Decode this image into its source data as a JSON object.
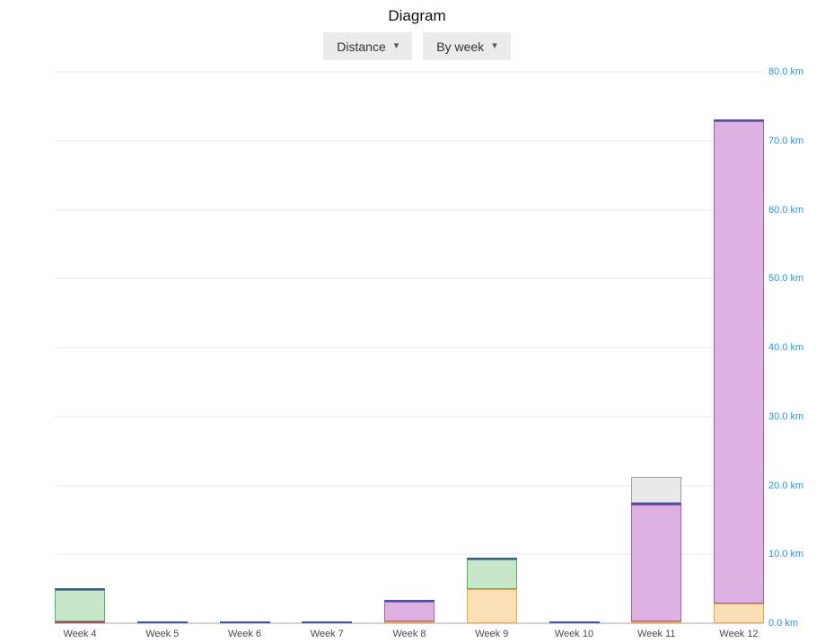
{
  "page": {
    "title": "Diagram"
  },
  "toolbar": {
    "metric_dropdown": {
      "label": "Distance",
      "caret_glyph": "▾"
    },
    "grouping_dropdown": {
      "label": "By week",
      "caret_glyph": "▾"
    }
  },
  "chart_data": {
    "type": "bar",
    "stacked": true,
    "title": "Diagram",
    "xlabel": "",
    "ylabel": "",
    "categories": [
      "Week 4",
      "Week 5",
      "Week 6",
      "Week 7",
      "Week 8",
      "Week 9",
      "Week 10",
      "Week 11",
      "Week 12"
    ],
    "series": [
      {
        "name": "red",
        "fill": "#ecb6c3",
        "border": "#b04a66",
        "values": [
          0.3,
          0,
          0,
          0,
          0,
          0,
          0,
          0,
          0
        ]
      },
      {
        "name": "orange",
        "fill": "#fbdfb6",
        "border": "#efa23f",
        "values": [
          0,
          0,
          0,
          0,
          0.2,
          4.9,
          0,
          0.3,
          2.9
        ]
      },
      {
        "name": "green",
        "fill": "#c8e6c9",
        "border": "#5aad5f",
        "values": [
          4.6,
          0,
          0,
          0,
          0,
          4.3,
          0,
          0,
          0
        ]
      },
      {
        "name": "purple",
        "fill": "#ddb2e2",
        "border": "#a65cb5",
        "values": [
          0,
          0,
          0,
          0,
          2.9,
          0,
          0,
          17.0,
          70.0
        ]
      },
      {
        "name": "blue",
        "fill": "#98a6d4",
        "border": "#3f51b5",
        "values": [
          0.3,
          0.3,
          0.3,
          0.3,
          0.3,
          0.3,
          0.3,
          0.3,
          0.2
        ]
      },
      {
        "name": "gray",
        "fill": "#e9e9e9",
        "border": "#9e9e9e",
        "values": [
          0,
          0,
          0,
          0,
          0,
          0,
          0,
          3.8,
          0
        ]
      }
    ],
    "totals_km": [
      5.2,
      0.3,
      0.3,
      0.3,
      3.4,
      9.5,
      0.3,
      21.4,
      73.1
    ],
    "y_axis": {
      "unit": "km",
      "min": 0,
      "max": 80,
      "tick_step": 10,
      "tick_labels": [
        "0.0 km",
        "10.0 km",
        "20.0 km",
        "30.0 km",
        "40.0 km",
        "50.0 km",
        "60.0 km",
        "70.0 km",
        "80.0 km"
      ],
      "position": "right",
      "label_color": "#2196f3"
    },
    "grid": true,
    "legend": false
  }
}
